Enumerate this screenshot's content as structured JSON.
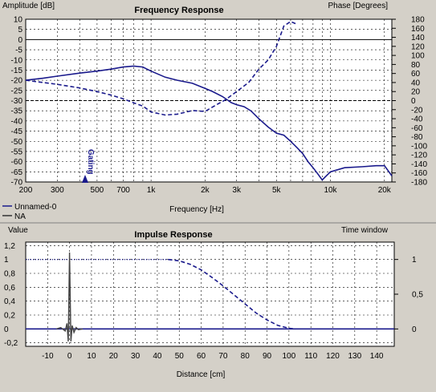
{
  "freq_panel": {
    "title": "Frequency Response",
    "y_left_label": "Amplitude [dB]",
    "y_right_label": "Phase [Degrees]",
    "x_label": "Frequency [Hz]",
    "marker_label": "Gating",
    "y_left_ticks": [
      "10",
      "5",
      "0",
      "-5",
      "-10",
      "-15",
      "-20",
      "-25",
      "-30",
      "-35",
      "-40",
      "-45",
      "-50",
      "-55",
      "-60",
      "-65",
      "-70"
    ],
    "y_right_ticks": [
      "180",
      "160",
      "140",
      "120",
      "100",
      "80",
      "60",
      "40",
      "20",
      "0",
      "-20",
      "-40",
      "-60",
      "-80",
      "-100",
      "-120",
      "-140",
      "-160",
      "-180"
    ],
    "x_ticks": [
      "200",
      "300",
      "500",
      "700",
      "1k",
      "2k",
      "3k",
      "5k",
      "10k",
      "20k"
    ],
    "legend": [
      {
        "label": "Unnamed-0",
        "color": "#1a1a8c"
      },
      {
        "label": "NA",
        "color": "#333333"
      }
    ]
  },
  "impulse_panel": {
    "title": "Impulse Response",
    "y_left_label": "Value",
    "y_right_label": "Time window",
    "x_label": "Distance [cm]",
    "y_left_ticks": [
      "1,2",
      "1",
      "0,8",
      "0,6",
      "0,4",
      "0,2",
      "0",
      "-0,2"
    ],
    "y_right_ticks": [
      "1",
      "0,5",
      "0"
    ],
    "x_ticks": [
      "-10",
      "0",
      "10",
      "20",
      "30",
      "40",
      "50",
      "60",
      "70",
      "80",
      "90",
      "100",
      "110",
      "120",
      "130",
      "140"
    ]
  },
  "colors": {
    "background": "#d4d0c8",
    "plot_bg": "#ffffff",
    "trace": "#1a1a8c",
    "impulse": "#444444",
    "grid": "#000000"
  },
  "chart_data": [
    {
      "type": "line",
      "title": "Frequency Response",
      "xlabel": "Frequency [Hz]",
      "ylabel": "Amplitude [dB]",
      "y2label": "Phase [Degrees]",
      "xscale": "log",
      "xlim": [
        200,
        22000
      ],
      "ylim": [
        -70,
        10
      ],
      "y2lim": [
        -180,
        180
      ],
      "grid": true,
      "series": [
        {
          "name": "Unnamed-0",
          "axis": "left",
          "style": "solid",
          "x": [
            200,
            250,
            300,
            400,
            500,
            600,
            700,
            800,
            900,
            1000,
            1200,
            1400,
            1700,
            2000,
            2200,
            2500,
            2800,
            3000,
            3300,
            3600,
            4000,
            4500,
            5000,
            5500,
            6000,
            6500,
            7000,
            7500,
            8000,
            8500,
            9000,
            10000,
            12000,
            15000,
            18000,
            20000,
            22000
          ],
          "y": [
            -20,
            -19,
            -18,
            -16.5,
            -15.5,
            -14.5,
            -13.5,
            -13,
            -13.5,
            -15.5,
            -18.5,
            -20,
            -21.5,
            -24,
            -25.5,
            -28,
            -31,
            -32,
            -33,
            -35,
            -39,
            -43,
            -46,
            -47,
            -50,
            -53,
            -56,
            -60,
            -63,
            -66,
            -69,
            -65,
            -63,
            -62.5,
            -62,
            -62,
            -67
          ]
        },
        {
          "name": "NA",
          "axis": "right",
          "style": "dashed",
          "x": [
            200,
            250,
            300,
            400,
            500,
            600,
            700,
            800,
            900,
            1000,
            1200,
            1400,
            1700,
            2000,
            2300,
            2600,
            3000,
            3500,
            4000,
            4500,
            5000,
            5500,
            6000,
            6400
          ],
          "y": [
            45,
            40,
            36,
            28,
            20,
            12,
            4,
            -5,
            -12,
            -25,
            -32,
            -30,
            -22,
            -24,
            -10,
            2,
            20,
            40,
            70,
            90,
            120,
            165,
            175,
            170
          ]
        }
      ]
    },
    {
      "type": "line",
      "title": "Impulse Response",
      "xlabel": "Distance [cm]",
      "ylabel": "Value",
      "y2label": "Time window",
      "xlim": [
        -20,
        148
      ],
      "ylim": [
        -0.25,
        1.25
      ],
      "y2lim": [
        0,
        1
      ],
      "grid": true,
      "series": [
        {
          "name": "Impulse",
          "axis": "left",
          "style": "solid",
          "x": [
            -6,
            -4,
            -2,
            -1.2,
            -0.6,
            0,
            0.6,
            1.2,
            2,
            3,
            4,
            6,
            148
          ],
          "y": [
            0,
            0.02,
            -0.03,
            0.08,
            -0.18,
            1.1,
            -0.18,
            0.05,
            -0.05,
            0.02,
            -0.01,
            0,
            0
          ]
        },
        {
          "name": "Time window",
          "axis": "right",
          "style": "dashed",
          "x": [
            -20,
            45,
            50,
            55,
            60,
            65,
            70,
            75,
            80,
            85,
            90,
            95,
            100,
            103
          ],
          "y": [
            1,
            1,
            0.98,
            0.93,
            0.85,
            0.74,
            0.62,
            0.49,
            0.36,
            0.23,
            0.13,
            0.05,
            0.01,
            0
          ]
        }
      ]
    }
  ]
}
